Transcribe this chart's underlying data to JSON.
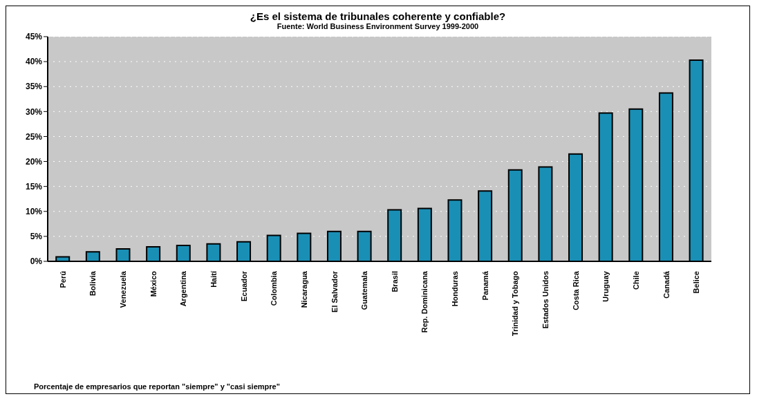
{
  "chart_data": {
    "type": "bar",
    "title": "¿Es el sistema de tribunales coherente y confiable?",
    "subtitle": "Fuente: World Business Environment Survey 1999-2000",
    "categories": [
      "Perú",
      "Bolivia",
      "Venezuela",
      "México",
      "Argentina",
      "Haití",
      "Ecuador",
      "Colombia",
      "Nicaragua",
      "El Salvador",
      "Guatemala",
      "Brasil",
      "Rep. Dominicana",
      "Honduras",
      "Panamá",
      "Trinidad y Tobago",
      "Estados Unidos",
      "Costa Rica",
      "Uruguay",
      "Chile",
      "Canadá",
      "Belice"
    ],
    "values": [
      0.9,
      1.9,
      2.5,
      2.9,
      3.2,
      3.5,
      3.9,
      5.2,
      5.6,
      6.0,
      6.0,
      10.3,
      10.6,
      12.3,
      14.1,
      18.3,
      18.9,
      21.5,
      29.7,
      30.5,
      33.7,
      40.3
    ],
    "color": "#1a8fb5",
    "ylim": [
      0,
      45
    ],
    "yticks": [
      {
        "value": 0,
        "label": "0%"
      },
      {
        "value": 5,
        "label": "5%"
      },
      {
        "value": 10,
        "label": "10%"
      },
      {
        "value": 15,
        "label": "15%"
      },
      {
        "value": 20,
        "label": "20%"
      },
      {
        "value": 25,
        "label": "25%"
      },
      {
        "value": 30,
        "label": "30%"
      },
      {
        "value": 35,
        "label": "35%"
      },
      {
        "value": 40,
        "label": "40%"
      },
      {
        "value": 45,
        "label": "45%"
      }
    ],
    "grid": "y",
    "annotations": [
      "Porcentaje de empresarios que reportan \"siempre\" y \"casi siempre\""
    ]
  }
}
